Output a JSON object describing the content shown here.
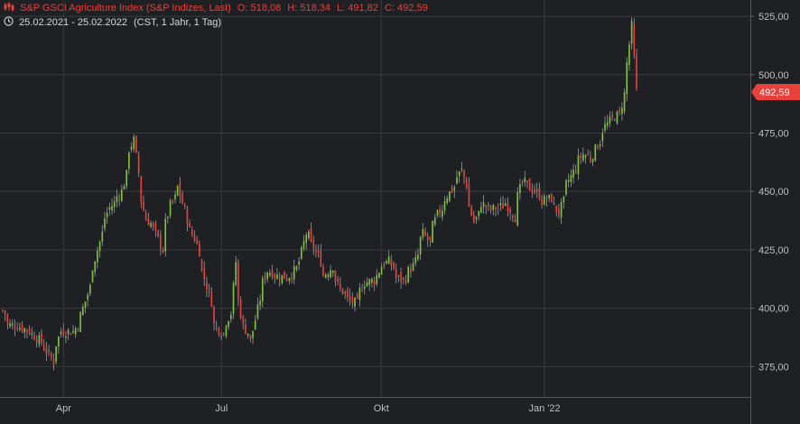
{
  "header": {
    "title": "S&P GSCI Agriculture Index (S&P Indizes, Last)",
    "open": "O: 518,08",
    "high": "H: 518,34",
    "low": "L: 491,82",
    "close": "C: 492,59",
    "date_range": "25.02.2021 - 25.02.2022",
    "interval": "(CST, 1 Jahr, 1 Tag)",
    "candle_icon": "candlestick-icon",
    "clock_icon": "clock-icon"
  },
  "colors": {
    "background": "#1f2024",
    "grid": "#3a3b40",
    "up": "#7ec13d",
    "down": "#e8413c",
    "text": "#bfbfbf"
  },
  "chart_data": {
    "type": "candlestick",
    "x_range": [
      "2021-02-25",
      "2022-02-25"
    ],
    "ylim": [
      362,
      532
    ],
    "y_ticks": [
      375,
      400,
      425,
      450,
      475,
      500,
      525
    ],
    "y_tick_labels": [
      "375,00",
      "400,00",
      "425,00",
      "450,00",
      "475,00",
      "500,00",
      "525,00"
    ],
    "x_ticks": [
      {
        "label": "Apr",
        "date": "2021-04-01"
      },
      {
        "label": "Jul",
        "date": "2021-07-01"
      },
      {
        "label": "Okt",
        "date": "2021-10-01"
      },
      {
        "label": "Jan '22",
        "date": "2022-01-03"
      }
    ],
    "last_price_label": "492,59",
    "last_price": 492.59,
    "close_path": [
      [
        "2021-02-25",
        399
      ],
      [
        "2021-03-01",
        393
      ],
      [
        "2021-03-08",
        392
      ],
      [
        "2021-03-15",
        389
      ],
      [
        "2021-03-22",
        383
      ],
      [
        "2021-03-26",
        377
      ],
      [
        "2021-03-31",
        390
      ],
      [
        "2021-04-07",
        390
      ],
      [
        "2021-04-12",
        397
      ],
      [
        "2021-04-19",
        418
      ],
      [
        "2021-04-23",
        432
      ],
      [
        "2021-04-28",
        443
      ],
      [
        "2021-05-05",
        450
      ],
      [
        "2021-05-10",
        468
      ],
      [
        "2021-05-12",
        472
      ],
      [
        "2021-05-14",
        458
      ],
      [
        "2021-05-19",
        438
      ],
      [
        "2021-05-24",
        434
      ],
      [
        "2021-05-28",
        425
      ],
      [
        "2021-06-02",
        444
      ],
      [
        "2021-06-07",
        452
      ],
      [
        "2021-06-11",
        438
      ],
      [
        "2021-06-16",
        430
      ],
      [
        "2021-06-21",
        416
      ],
      [
        "2021-06-28",
        393
      ],
      [
        "2021-07-02",
        389
      ],
      [
        "2021-07-07",
        398
      ],
      [
        "2021-07-09",
        420
      ],
      [
        "2021-07-14",
        392
      ],
      [
        "2021-07-19",
        386
      ],
      [
        "2021-07-23",
        404
      ],
      [
        "2021-07-28",
        416
      ],
      [
        "2021-08-02",
        414
      ],
      [
        "2021-08-09",
        413
      ],
      [
        "2021-08-16",
        420
      ],
      [
        "2021-08-19",
        432
      ],
      [
        "2021-08-24",
        426
      ],
      [
        "2021-08-30",
        414
      ],
      [
        "2021-09-03",
        418
      ],
      [
        "2021-09-08",
        408
      ],
      [
        "2021-09-14",
        403
      ],
      [
        "2021-09-17",
        402
      ],
      [
        "2021-09-22",
        411
      ],
      [
        "2021-09-28",
        412
      ],
      [
        "2021-10-01",
        418
      ],
      [
        "2021-10-06",
        420
      ],
      [
        "2021-10-11",
        413
      ],
      [
        "2021-10-14",
        412
      ],
      [
        "2021-10-20",
        418
      ],
      [
        "2021-10-26",
        432
      ],
      [
        "2021-10-29",
        428
      ],
      [
        "2021-11-03",
        440
      ],
      [
        "2021-11-08",
        447
      ],
      [
        "2021-11-12",
        452
      ],
      [
        "2021-11-17",
        459
      ],
      [
        "2021-11-19",
        453
      ],
      [
        "2021-11-24",
        437
      ],
      [
        "2021-11-29",
        445
      ],
      [
        "2021-12-03",
        442
      ],
      [
        "2021-12-08",
        443
      ],
      [
        "2021-12-13",
        445
      ],
      [
        "2021-12-17",
        439
      ],
      [
        "2021-12-22",
        454
      ],
      [
        "2021-12-28",
        451
      ],
      [
        "2022-01-03",
        446
      ],
      [
        "2022-01-07",
        447
      ],
      [
        "2022-01-12",
        441
      ],
      [
        "2022-01-17",
        453
      ],
      [
        "2022-01-21",
        460
      ],
      [
        "2022-01-26",
        466
      ],
      [
        "2022-01-31",
        464
      ],
      [
        "2022-02-03",
        470
      ],
      [
        "2022-02-08",
        478
      ],
      [
        "2022-02-11",
        481
      ],
      [
        "2022-02-16",
        483
      ],
      [
        "2022-02-21",
        505
      ],
      [
        "2022-02-23",
        521
      ],
      [
        "2022-02-25",
        492.59
      ]
    ]
  }
}
